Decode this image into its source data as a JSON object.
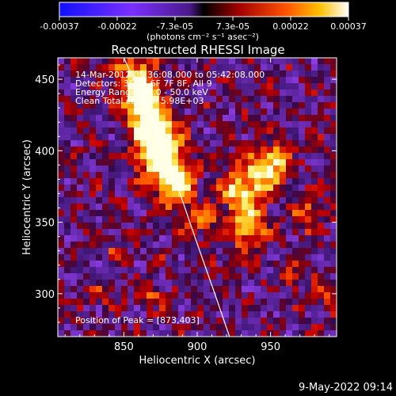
{
  "colorbar": {
    "ticks": [
      "-0.00037",
      "-0.00022",
      "-7.3e-05",
      "7.3e-05",
      "0.00022",
      "0.00037"
    ],
    "units_label": "(photons cm⁻² s⁻¹ asec⁻²)"
  },
  "chart_data": {
    "type": "heatmap",
    "title": "Reconstructed RHESSI Image",
    "xlabel": "Heliocentric X (arcsec)",
    "ylabel": "Heliocentric Y (arcsec)",
    "xlim": [
      805,
      995
    ],
    "ylim": [
      270,
      465
    ],
    "xticks": [
      850,
      900,
      950
    ],
    "yticks": [
      300,
      350,
      400,
      450
    ],
    "color_range": [
      -0.00037,
      0.00037
    ],
    "colormap": "blue-purple-red-yellow-white",
    "limb_curve": [
      [
        850,
        465
      ],
      [
        870,
        420
      ],
      [
        885,
        380
      ],
      [
        900,
        335
      ],
      [
        912,
        300
      ],
      [
        922,
        270
      ]
    ],
    "peak_position": [
      873,
      403
    ],
    "annotations": [
      "14-Mar-2012 05:36:08.000 to 05:42:08.000",
      "Detectors: 3F 5F 6F 7F 8F, All 9",
      "Energy Range: 25.0 - 50.0 keV",
      "Clean     Total counts: 5.98E+03",
      "Position of Peak = [873,403]"
    ]
  },
  "footer": {
    "date": "9-May-2022 09:14"
  }
}
